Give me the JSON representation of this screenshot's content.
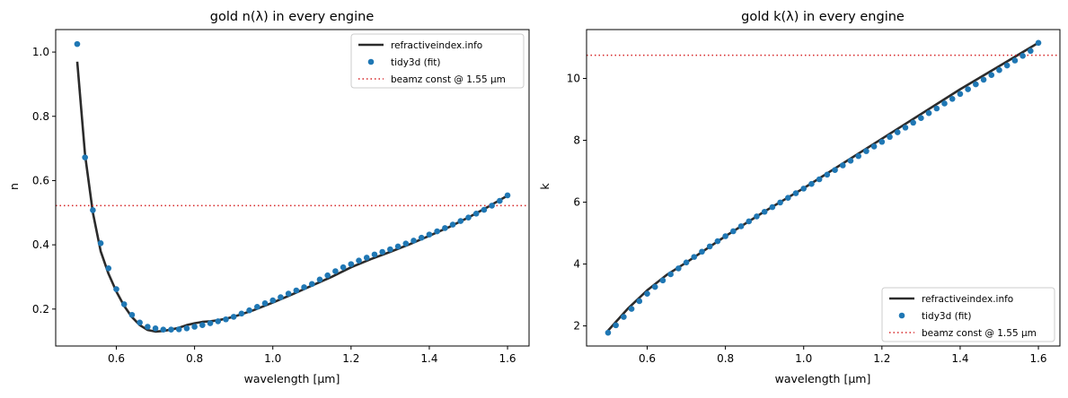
{
  "chart_data": [
    {
      "type": "line",
      "title": "gold n(λ) in every engine",
      "xlabel": "wavelength [µm]",
      "ylabel": "n",
      "xlim": [
        0.445,
        1.655
      ],
      "ylim": [
        0.085,
        1.07
      ],
      "xticks": [
        0.6,
        0.8,
        1.0,
        1.2,
        1.4,
        1.6
      ],
      "xtick_labels": [
        "0.6",
        "0.8",
        "1.0",
        "1.2",
        "1.4",
        "1.6"
      ],
      "yticks": [
        0.2,
        0.4,
        0.6,
        0.8,
        1.0
      ],
      "ytick_labels": [
        "0.2",
        "0.4",
        "0.6",
        "0.8",
        "1.0"
      ],
      "legend_position": "top-right",
      "series": [
        {
          "name": "refractiveindex.info",
          "style": "line",
          "color": "#2b2b2b",
          "x": [
            0.5,
            0.52,
            0.54,
            0.56,
            0.58,
            0.6,
            0.62,
            0.64,
            0.66,
            0.68,
            0.7,
            0.72,
            0.74,
            0.76,
            0.78,
            0.8,
            0.82,
            0.84,
            0.86,
            0.88,
            0.9,
            0.95,
            1.0,
            1.05,
            1.1,
            1.15,
            1.2,
            1.25,
            1.3,
            1.35,
            1.4,
            1.45,
            1.5,
            1.55,
            1.6
          ],
          "y": [
            0.97,
            0.68,
            0.5,
            0.38,
            0.31,
            0.255,
            0.21,
            0.175,
            0.15,
            0.135,
            0.13,
            0.132,
            0.136,
            0.142,
            0.15,
            0.156,
            0.16,
            0.162,
            0.165,
            0.17,
            0.176,
            0.196,
            0.22,
            0.246,
            0.273,
            0.3,
            0.33,
            0.355,
            0.378,
            0.402,
            0.428,
            0.455,
            0.485,
            0.518,
            0.553
          ]
        },
        {
          "name": "tidy3d (fit)",
          "style": "scatter",
          "color": "#1f77b4",
          "x": [
            0.5,
            0.52,
            0.54,
            0.56,
            0.58,
            0.6,
            0.62,
            0.64,
            0.66,
            0.68,
            0.7,
            0.72,
            0.74,
            0.76,
            0.78,
            0.8,
            0.82,
            0.84,
            0.86,
            0.88,
            0.9,
            0.92,
            0.94,
            0.96,
            0.98,
            1.0,
            1.02,
            1.04,
            1.06,
            1.08,
            1.1,
            1.12,
            1.14,
            1.16,
            1.18,
            1.2,
            1.22,
            1.24,
            1.26,
            1.28,
            1.3,
            1.32,
            1.34,
            1.36,
            1.38,
            1.4,
            1.42,
            1.44,
            1.46,
            1.48,
            1.5,
            1.52,
            1.54,
            1.56,
            1.58,
            1.6
          ],
          "y": [
            1.025,
            0.672,
            0.508,
            0.405,
            0.327,
            0.262,
            0.215,
            0.182,
            0.158,
            0.145,
            0.14,
            0.136,
            0.136,
            0.137,
            0.14,
            0.145,
            0.15,
            0.156,
            0.162,
            0.168,
            0.176,
            0.186,
            0.196,
            0.207,
            0.218,
            0.227,
            0.237,
            0.248,
            0.258,
            0.268,
            0.278,
            0.292,
            0.305,
            0.318,
            0.33,
            0.34,
            0.351,
            0.36,
            0.37,
            0.378,
            0.386,
            0.395,
            0.404,
            0.413,
            0.422,
            0.432,
            0.442,
            0.452,
            0.463,
            0.474,
            0.485,
            0.497,
            0.509,
            0.522,
            0.537,
            0.554
          ]
        },
        {
          "name": "beamz const @ 1.55 µm",
          "style": "hline-dotted",
          "color": "#d62728",
          "y": 0.522
        }
      ]
    },
    {
      "type": "line",
      "title": "gold k(λ) in every engine",
      "xlabel": "wavelength [µm]",
      "ylabel": "k",
      "xlim": [
        0.445,
        1.655
      ],
      "ylim": [
        1.35,
        11.58
      ],
      "xticks": [
        0.6,
        0.8,
        1.0,
        1.2,
        1.4,
        1.6
      ],
      "xtick_labels": [
        "0.6",
        "0.8",
        "1.0",
        "1.2",
        "1.4",
        "1.6"
      ],
      "yticks": [
        2,
        4,
        6,
        8,
        10
      ],
      "ytick_labels": [
        "2",
        "4",
        "6",
        "8",
        "10"
      ],
      "legend_position": "bottom-right",
      "series": [
        {
          "name": "refractiveindex.info",
          "style": "line",
          "color": "#2b2b2b",
          "x": [
            0.5,
            0.55,
            0.6,
            0.65,
            0.7,
            0.8,
            0.9,
            1.0,
            1.1,
            1.2,
            1.3,
            1.4,
            1.5,
            1.6
          ],
          "y": [
            1.85,
            2.55,
            3.15,
            3.65,
            4.05,
            4.9,
            5.7,
            6.45,
            7.25,
            8.05,
            8.85,
            9.65,
            10.4,
            11.15
          ]
        },
        {
          "name": "tidy3d (fit)",
          "style": "scatter",
          "color": "#1f77b4",
          "x": [
            0.5,
            0.52,
            0.54,
            0.56,
            0.58,
            0.6,
            0.62,
            0.64,
            0.66,
            0.68,
            0.7,
            0.72,
            0.74,
            0.76,
            0.78,
            0.8,
            0.82,
            0.84,
            0.86,
            0.88,
            0.9,
            0.92,
            0.94,
            0.96,
            0.98,
            1.0,
            1.02,
            1.04,
            1.06,
            1.08,
            1.1,
            1.12,
            1.14,
            1.16,
            1.18,
            1.2,
            1.22,
            1.24,
            1.26,
            1.28,
            1.3,
            1.32,
            1.34,
            1.36,
            1.38,
            1.4,
            1.42,
            1.44,
            1.46,
            1.48,
            1.5,
            1.52,
            1.54,
            1.56,
            1.58,
            1.6
          ],
          "y": [
            1.78,
            2.02,
            2.29,
            2.55,
            2.8,
            3.04,
            3.26,
            3.47,
            3.67,
            3.86,
            4.05,
            4.23,
            4.4,
            4.57,
            4.74,
            4.9,
            5.06,
            5.22,
            5.38,
            5.54,
            5.69,
            5.84,
            5.99,
            6.14,
            6.29,
            6.44,
            6.59,
            6.74,
            6.89,
            7.04,
            7.19,
            7.34,
            7.49,
            7.65,
            7.8,
            7.95,
            8.11,
            8.26,
            8.41,
            8.57,
            8.72,
            8.88,
            9.03,
            9.19,
            9.34,
            9.5,
            9.65,
            9.81,
            9.96,
            10.11,
            10.27,
            10.42,
            10.58,
            10.73,
            10.89,
            11.15
          ]
        },
        {
          "name": "beamz const @ 1.55 µm",
          "style": "hline-dotted",
          "color": "#d62728",
          "y": 10.75
        }
      ]
    }
  ]
}
